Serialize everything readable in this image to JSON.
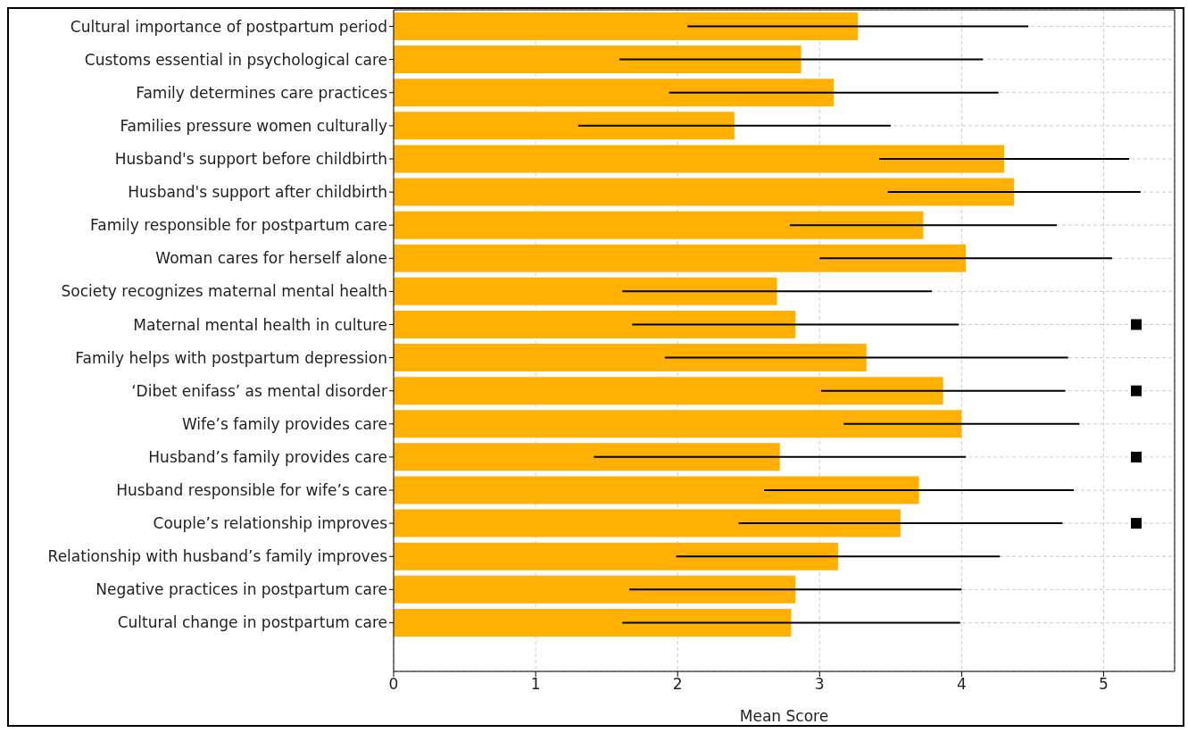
{
  "chart_data": {
    "type": "bar",
    "orientation": "horizontal",
    "xlabel": "Mean Score",
    "categories": [
      "Cultural importance of postpartum period",
      "Customs essential in psychological care",
      "Family determines care practices",
      "Families pressure women culturally",
      "Husband's support before childbirth",
      "Husband's support after childbirth",
      "Family responsible for postpartum care",
      "Woman cares for herself alone",
      "Society recognizes maternal mental health",
      "Maternal mental health in culture",
      "Family helps with postpartum depression",
      "‘Dibet enifass’ as mental disorder",
      "Wife’s family provides care",
      "Husband’s family provides care",
      "Husband responsible for wife’s care",
      "Couple’s relationship improves",
      "Relationship with husband’s family improves",
      "Negative practices in postpartum care",
      "Cultural change in postpartum care"
    ],
    "series": [
      {
        "color": "#ffb000",
        "values": [
          3.27,
          2.87,
          3.1,
          2.4,
          4.3,
          4.37,
          3.73,
          4.03,
          2.7,
          2.83,
          3.33,
          3.87,
          4.0,
          2.72,
          3.7,
          3.57,
          3.13,
          2.83,
          2.8
        ],
        "errors": [
          1.2,
          1.28,
          1.16,
          1.1,
          0.88,
          0.89,
          0.94,
          1.03,
          1.09,
          1.15,
          1.42,
          0.86,
          0.83,
          1.31,
          1.09,
          1.14,
          1.14,
          1.17,
          1.19
        ]
      },
      {
        "type": "scatter",
        "color": "#000000",
        "marker": "square",
        "x": [
          "Maternal mental health in culture",
          "‘Dibet enifass’ as mental disorder",
          "Husband’s family provides care",
          "Couple’s relationship improves"
        ],
        "values": [
          5.23,
          5.23,
          5.23,
          5.23
        ]
      }
    ],
    "xlim": [
      0,
      5.5
    ],
    "xticks": [
      0,
      1,
      2,
      3,
      4,
      5
    ],
    "grid": true
  }
}
